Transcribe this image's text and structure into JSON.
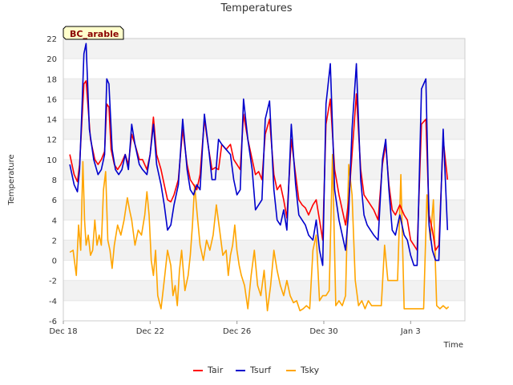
{
  "chart_data": {
    "type": "line",
    "title": "Temperatures",
    "xlabel": "Time",
    "ylabel": "Temperature",
    "site_label": "BC_arable",
    "ylim": [
      -6,
      22
    ],
    "yticks": [
      -6,
      -4,
      -2,
      0,
      2,
      4,
      6,
      8,
      10,
      12,
      14,
      16,
      18,
      20,
      22
    ],
    "xlim": [
      0,
      18.5
    ],
    "xticks": [
      {
        "x": 0,
        "label": "Dec 18"
      },
      {
        "x": 4,
        "label": "Dec 22"
      },
      {
        "x": 8,
        "label": "Dec 26"
      },
      {
        "x": 12,
        "label": "Dec 30"
      },
      {
        "x": 16,
        "label": "Jan 3"
      }
    ],
    "legend_position": "bottom",
    "grid": "horizontal bands",
    "series": [
      {
        "name": "Tair",
        "color": "#ff0000",
        "x": [
          0.3,
          0.5,
          0.65,
          0.75,
          0.85,
          0.95,
          1.05,
          1.25,
          1.45,
          1.6,
          1.75,
          1.9,
          2.0,
          2.1,
          2.2,
          2.35,
          2.5,
          2.65,
          2.85,
          3.0,
          3.15,
          3.3,
          3.5,
          3.65,
          3.85,
          4.0,
          4.15,
          4.3,
          4.5,
          4.65,
          4.8,
          4.95,
          5.1,
          5.3,
          5.5,
          5.7,
          5.85,
          6.0,
          6.15,
          6.3,
          6.5,
          6.7,
          6.85,
          7.0,
          7.15,
          7.3,
          7.5,
          7.7,
          7.85,
          8.0,
          8.15,
          8.3,
          8.5,
          8.7,
          8.85,
          9.0,
          9.15,
          9.3,
          9.5,
          9.7,
          9.85,
          10.0,
          10.15,
          10.3,
          10.5,
          10.7,
          10.85,
          11.0,
          11.15,
          11.3,
          11.5,
          11.65,
          11.8,
          11.95,
          12.1,
          12.3,
          12.5,
          12.7,
          12.85,
          13.0,
          13.15,
          13.3,
          13.5,
          13.7,
          13.85,
          14.0,
          14.15,
          14.3,
          14.5,
          14.7,
          14.85,
          15.0,
          15.15,
          15.3,
          15.5,
          15.7,
          15.85,
          16.0,
          16.15,
          16.3,
          16.5,
          16.7,
          16.85,
          17.0,
          17.15,
          17.3,
          17.5,
          17.7
        ],
        "y": [
          10.5,
          8.5,
          7.8,
          9.5,
          13.5,
          17.5,
          17.8,
          12.0,
          10.0,
          9.5,
          10.0,
          10.8,
          15.5,
          15.2,
          11.0,
          9.5,
          9.0,
          9.5,
          10.5,
          9.5,
          12.5,
          11.5,
          10.0,
          10.0,
          9.0,
          10.5,
          14.2,
          10.5,
          9.0,
          7.5,
          6.0,
          5.8,
          6.5,
          8.0,
          13.0,
          9.5,
          8.0,
          7.5,
          7.0,
          8.5,
          14.0,
          11.0,
          9.0,
          9.2,
          9.0,
          11.5,
          11.0,
          11.5,
          10.0,
          9.5,
          9.0,
          14.5,
          12.0,
          10.0,
          8.5,
          8.8,
          8.0,
          12.5,
          14.0,
          8.5,
          7.0,
          7.5,
          6.0,
          4.2,
          12.0,
          8.5,
          6.0,
          5.5,
          5.2,
          4.5,
          5.5,
          6.0,
          4.0,
          2.0,
          13.5,
          16.0,
          9.0,
          6.5,
          5.0,
          3.5,
          6.0,
          10.5,
          16.5,
          9.0,
          6.5,
          6.0,
          5.5,
          5.0,
          4.0,
          9.5,
          11.5,
          7.5,
          5.0,
          4.5,
          5.5,
          4.5,
          4.0,
          2.0,
          1.5,
          1.0,
          13.5,
          14.0,
          4.5,
          3.0,
          1.0,
          1.5,
          12.0,
          8.0
        ]
      },
      {
        "name": "Tsurf",
        "color": "#0000cc",
        "x": [
          0.3,
          0.5,
          0.65,
          0.75,
          0.85,
          0.95,
          1.05,
          1.2,
          1.4,
          1.6,
          1.75,
          1.9,
          2.0,
          2.1,
          2.25,
          2.4,
          2.55,
          2.7,
          2.85,
          3.0,
          3.15,
          3.3,
          3.5,
          3.65,
          3.85,
          4.0,
          4.15,
          4.3,
          4.5,
          4.65,
          4.8,
          4.95,
          5.1,
          5.3,
          5.5,
          5.7,
          5.85,
          6.0,
          6.15,
          6.3,
          6.5,
          6.7,
          6.85,
          7.0,
          7.15,
          7.3,
          7.5,
          7.7,
          7.85,
          8.0,
          8.15,
          8.3,
          8.5,
          8.7,
          8.85,
          9.0,
          9.15,
          9.3,
          9.5,
          9.7,
          9.85,
          10.0,
          10.15,
          10.3,
          10.5,
          10.7,
          10.85,
          11.0,
          11.15,
          11.3,
          11.5,
          11.65,
          11.8,
          11.95,
          12.1,
          12.3,
          12.5,
          12.7,
          12.85,
          13.0,
          13.15,
          13.3,
          13.5,
          13.7,
          13.85,
          14.0,
          14.15,
          14.3,
          14.5,
          14.7,
          14.85,
          15.0,
          15.15,
          15.3,
          15.5,
          15.7,
          15.85,
          16.0,
          16.15,
          16.3,
          16.5,
          16.7,
          16.85,
          17.0,
          17.15,
          17.3,
          17.5,
          17.7
        ],
        "y": [
          9.5,
          7.5,
          6.8,
          9.0,
          14.5,
          20.5,
          21.5,
          13.0,
          10.0,
          8.5,
          9.0,
          10.5,
          18.0,
          17.5,
          11.0,
          9.0,
          8.5,
          9.0,
          10.5,
          9.0,
          13.5,
          11.5,
          9.5,
          9.0,
          8.5,
          10.5,
          13.5,
          9.5,
          7.5,
          5.5,
          3.0,
          3.5,
          5.5,
          7.5,
          14.0,
          9.0,
          7.0,
          6.5,
          7.5,
          7.0,
          14.5,
          11.0,
          8.0,
          8.0,
          12.0,
          11.5,
          11.0,
          10.5,
          8.0,
          6.5,
          7.0,
          16.0,
          12.0,
          9.0,
          5.0,
          5.5,
          6.0,
          14.0,
          15.8,
          7.0,
          4.0,
          3.5,
          5.0,
          3.0,
          13.5,
          7.5,
          4.5,
          4.0,
          3.5,
          2.5,
          2.0,
          4.0,
          1.0,
          -0.5,
          15.5,
          19.5,
          7.0,
          4.0,
          2.5,
          1.0,
          5.0,
          13.0,
          19.5,
          8.0,
          4.5,
          3.5,
          3.0,
          2.5,
          2.0,
          10.0,
          12.0,
          7.0,
          3.0,
          2.5,
          4.5,
          2.5,
          2.0,
          0.5,
          -0.5,
          -0.5,
          17.0,
          18.0,
          3.5,
          1.0,
          0.0,
          0.0,
          13.0,
          3.0
        ]
      },
      {
        "name": "Tsky",
        "color": "#ffa500",
        "x": [
          0.3,
          0.45,
          0.6,
          0.7,
          0.8,
          0.9,
          0.98,
          1.05,
          1.15,
          1.25,
          1.35,
          1.45,
          1.55,
          1.65,
          1.75,
          1.85,
          1.95,
          2.05,
          2.15,
          2.25,
          2.35,
          2.5,
          2.65,
          2.8,
          2.95,
          3.05,
          3.15,
          3.3,
          3.45,
          3.6,
          3.75,
          3.85,
          3.95,
          4.05,
          4.15,
          4.25,
          4.35,
          4.5,
          4.65,
          4.8,
          4.95,
          5.05,
          5.15,
          5.25,
          5.35,
          5.45,
          5.6,
          5.75,
          5.85,
          5.95,
          6.05,
          6.15,
          6.3,
          6.45,
          6.6,
          6.75,
          6.9,
          7.05,
          7.2,
          7.35,
          7.5,
          7.6,
          7.7,
          7.8,
          7.9,
          8.0,
          8.1,
          8.2,
          8.35,
          8.5,
          8.65,
          8.8,
          8.95,
          9.1,
          9.25,
          9.4,
          9.55,
          9.7,
          9.85,
          10.0,
          10.15,
          10.3,
          10.45,
          10.6,
          10.75,
          10.9,
          11.05,
          11.2,
          11.35,
          11.5,
          11.65,
          11.8,
          11.95,
          12.1,
          12.25,
          12.4,
          12.55,
          12.7,
          12.85,
          13.0,
          13.15,
          13.3,
          13.45,
          13.6,
          13.75,
          13.9,
          14.05,
          14.2,
          14.35,
          14.5,
          14.65,
          14.8,
          14.95,
          15.1,
          15.25,
          15.4,
          15.55,
          15.7,
          15.85,
          16.0,
          16.15,
          16.3,
          16.45,
          16.6,
          16.75,
          16.9,
          17.05,
          17.2,
          17.35,
          17.5,
          17.65,
          17.75
        ],
        "y": [
          0.8,
          1.0,
          -1.5,
          3.5,
          1.0,
          9.8,
          4.0,
          1.5,
          2.5,
          0.5,
          1.0,
          4.0,
          1.5,
          2.5,
          1.5,
          7.0,
          8.8,
          2.0,
          1.0,
          -0.8,
          1.5,
          3.5,
          2.5,
          4.0,
          6.2,
          5.0,
          4.0,
          1.5,
          3.0,
          2.5,
          4.5,
          6.8,
          4.5,
          0.0,
          -1.5,
          1.0,
          -3.5,
          -4.8,
          -2.0,
          1.0,
          -0.5,
          -3.5,
          -2.5,
          -4.5,
          -1.0,
          1.0,
          -3.0,
          -1.5,
          0.5,
          3.5,
          7.5,
          5.0,
          1.5,
          0.0,
          2.0,
          1.0,
          2.5,
          5.5,
          3.0,
          0.5,
          1.0,
          -1.5,
          0.5,
          1.5,
          3.5,
          1.0,
          -0.5,
          -1.5,
          -2.5,
          -4.8,
          -1.5,
          1.0,
          -2.5,
          -3.5,
          -1.0,
          -5.0,
          -2.5,
          1.0,
          -1.0,
          -2.5,
          -3.5,
          -2.0,
          -3.5,
          -4.2,
          -4.0,
          -5.0,
          -4.8,
          -4.5,
          -4.8,
          1.0,
          2.5,
          -4.0,
          -3.5,
          -3.5,
          -3.0,
          10.5,
          -4.5,
          -4.0,
          -4.5,
          -3.5,
          9.5,
          6.5,
          -2.0,
          -4.5,
          -4.0,
          -4.8,
          -4.0,
          -4.5,
          -4.5,
          -4.5,
          -4.5,
          1.5,
          -2.0,
          -2.0,
          -2.0,
          -2.0,
          8.5,
          -4.8,
          -4.8,
          -4.8,
          -4.8,
          -4.8,
          -4.8,
          -4.8,
          6.5,
          2.0,
          6.0,
          -4.5,
          -4.8,
          -4.5,
          -4.8,
          -4.6
        ]
      }
    ]
  }
}
